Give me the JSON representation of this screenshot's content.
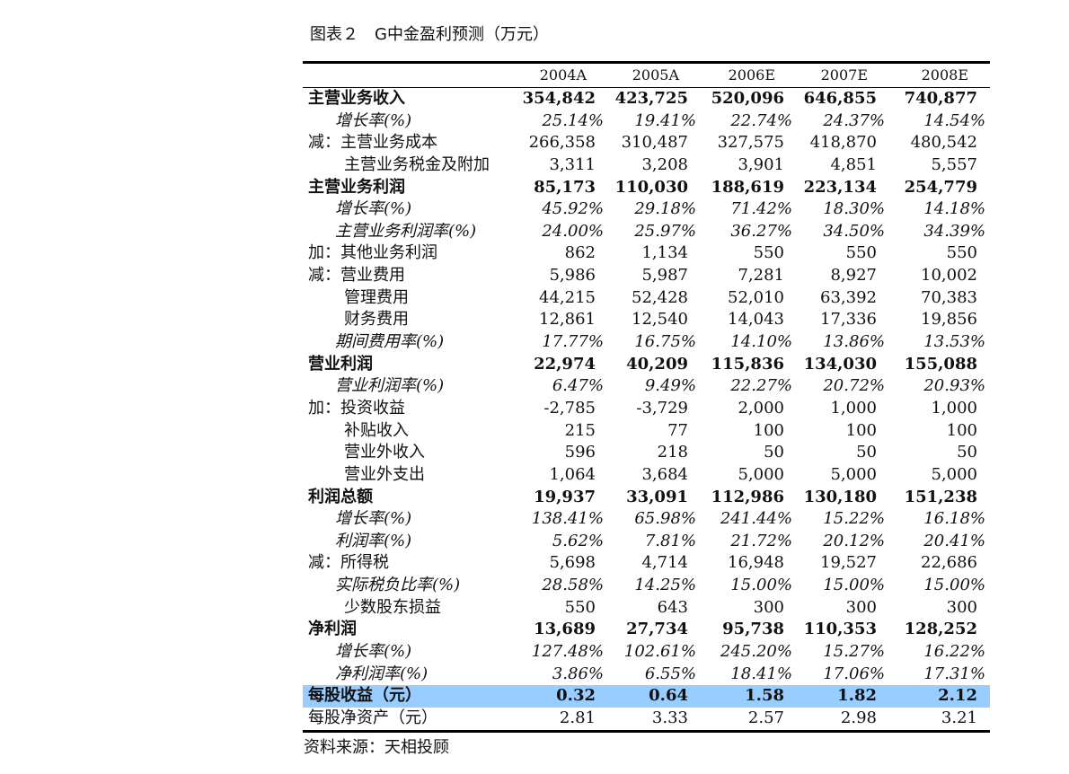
{
  "title": "图表２　G中金盈利预测（万元）",
  "columns": [
    "2004A",
    "2005A",
    "2006E",
    "2007E",
    "2008E"
  ],
  "rows": [
    {
      "label": "主营业务收入",
      "style": "bold",
      "values": [
        "354,842",
        "423,725",
        "520,096",
        "646,855",
        "740,877"
      ]
    },
    {
      "label": "增长率(%)",
      "style": "ital",
      "values": [
        "25.14%",
        "19.41%",
        "22.74%",
        "24.37%",
        "14.54%"
      ]
    },
    {
      "label": "减：主营业务成本",
      "style": "normal",
      "values": [
        "266,358",
        "310,487",
        "327,575",
        "418,870",
        "480,542"
      ]
    },
    {
      "label": "主营业务税金及附加",
      "style": "sub",
      "values": [
        "3,311",
        "3,208",
        "3,901",
        "4,851",
        "5,557"
      ]
    },
    {
      "label": "主营业务利润",
      "style": "bold",
      "values": [
        "85,173",
        "110,030",
        "188,619",
        "223,134",
        "254,779"
      ]
    },
    {
      "label": "增长率(%)",
      "style": "ital",
      "values": [
        "45.92%",
        "29.18%",
        "71.42%",
        "18.30%",
        "14.18%"
      ]
    },
    {
      "label": "主营业务利润率(%)",
      "style": "ital",
      "values": [
        "24.00%",
        "25.97%",
        "36.27%",
        "34.50%",
        "34.39%"
      ]
    },
    {
      "label": "加：其他业务利润",
      "style": "normal",
      "values": [
        "862",
        "1,134",
        "550",
        "550",
        "550"
      ]
    },
    {
      "label": "减：营业费用",
      "style": "normal",
      "values": [
        "5,986",
        "5,987",
        "7,281",
        "8,927",
        "10,002"
      ]
    },
    {
      "label": "管理费用",
      "style": "sub",
      "values": [
        "44,215",
        "52,428",
        "52,010",
        "63,392",
        "70,383"
      ]
    },
    {
      "label": "财务费用",
      "style": "sub",
      "values": [
        "12,861",
        "12,540",
        "14,043",
        "17,336",
        "19,856"
      ]
    },
    {
      "label": "期间费用率(%)",
      "style": "ital",
      "values": [
        "17.77%",
        "16.75%",
        "14.10%",
        "13.86%",
        "13.53%"
      ]
    },
    {
      "label": "营业利润",
      "style": "bold",
      "values": [
        "22,974",
        "40,209",
        "115,836",
        "134,030",
        "155,088"
      ]
    },
    {
      "label": "营业利润率(%)",
      "style": "ital",
      "values": [
        "6.47%",
        "9.49%",
        "22.27%",
        "20.72%",
        "20.93%"
      ]
    },
    {
      "label": "加：投资收益",
      "style": "normal",
      "values": [
        "-2,785",
        "-3,729",
        "2,000",
        "1,000",
        "1,000"
      ]
    },
    {
      "label": "补贴收入",
      "style": "sub",
      "values": [
        "215",
        "77",
        "100",
        "100",
        "100"
      ]
    },
    {
      "label": "营业外收入",
      "style": "sub",
      "values": [
        "596",
        "218",
        "50",
        "50",
        "50"
      ]
    },
    {
      "label": "营业外支出",
      "style": "sub",
      "values": [
        "1,064",
        "3,684",
        "5,000",
        "5,000",
        "5,000"
      ]
    },
    {
      "label": "利润总额",
      "style": "bold",
      "values": [
        "19,937",
        "33,091",
        "112,986",
        "130,180",
        "151,238"
      ]
    },
    {
      "label": "增长率(%)",
      "style": "ital",
      "values": [
        "138.41%",
        "65.98%",
        "241.44%",
        "15.22%",
        "16.18%"
      ]
    },
    {
      "label": "利润率(%)",
      "style": "ital",
      "values": [
        "5.62%",
        "7.81%",
        "21.72%",
        "20.12%",
        "20.41%"
      ]
    },
    {
      "label": "减：所得税",
      "style": "normal",
      "values": [
        "5,698",
        "4,714",
        "16,948",
        "19,527",
        "22,686"
      ]
    },
    {
      "label": "实际税负比率(%)",
      "style": "ital",
      "values": [
        "28.58%",
        "14.25%",
        "15.00%",
        "15.00%",
        "15.00%"
      ]
    },
    {
      "label": "少数股东损益",
      "style": "sub",
      "values": [
        "550",
        "643",
        "300",
        "300",
        "300"
      ]
    },
    {
      "label": "净利润",
      "style": "bold",
      "values": [
        "13,689",
        "27,734",
        "95,738",
        "110,353",
        "128,252"
      ]
    },
    {
      "label": "增长率(%)",
      "style": "ital",
      "values": [
        "127.48%",
        "102.61%",
        "245.20%",
        "15.27%",
        "16.22%"
      ]
    },
    {
      "label": "净利润率(%)",
      "style": "ital",
      "values": [
        "3.86%",
        "6.55%",
        "18.41%",
        "17.06%",
        "17.31%"
      ]
    },
    {
      "label": "每股收益（元）",
      "style": "bold hl",
      "values": [
        "0.32",
        "0.64",
        "1.58",
        "1.82",
        "2.12"
      ]
    },
    {
      "label": "每股净资产（元）",
      "style": "normal last",
      "values": [
        "2.81",
        "3.33",
        "2.57",
        "2.98",
        "3.21"
      ]
    }
  ],
  "highlight_color": "#99ccff",
  "source": "资料来源：天相投顾"
}
